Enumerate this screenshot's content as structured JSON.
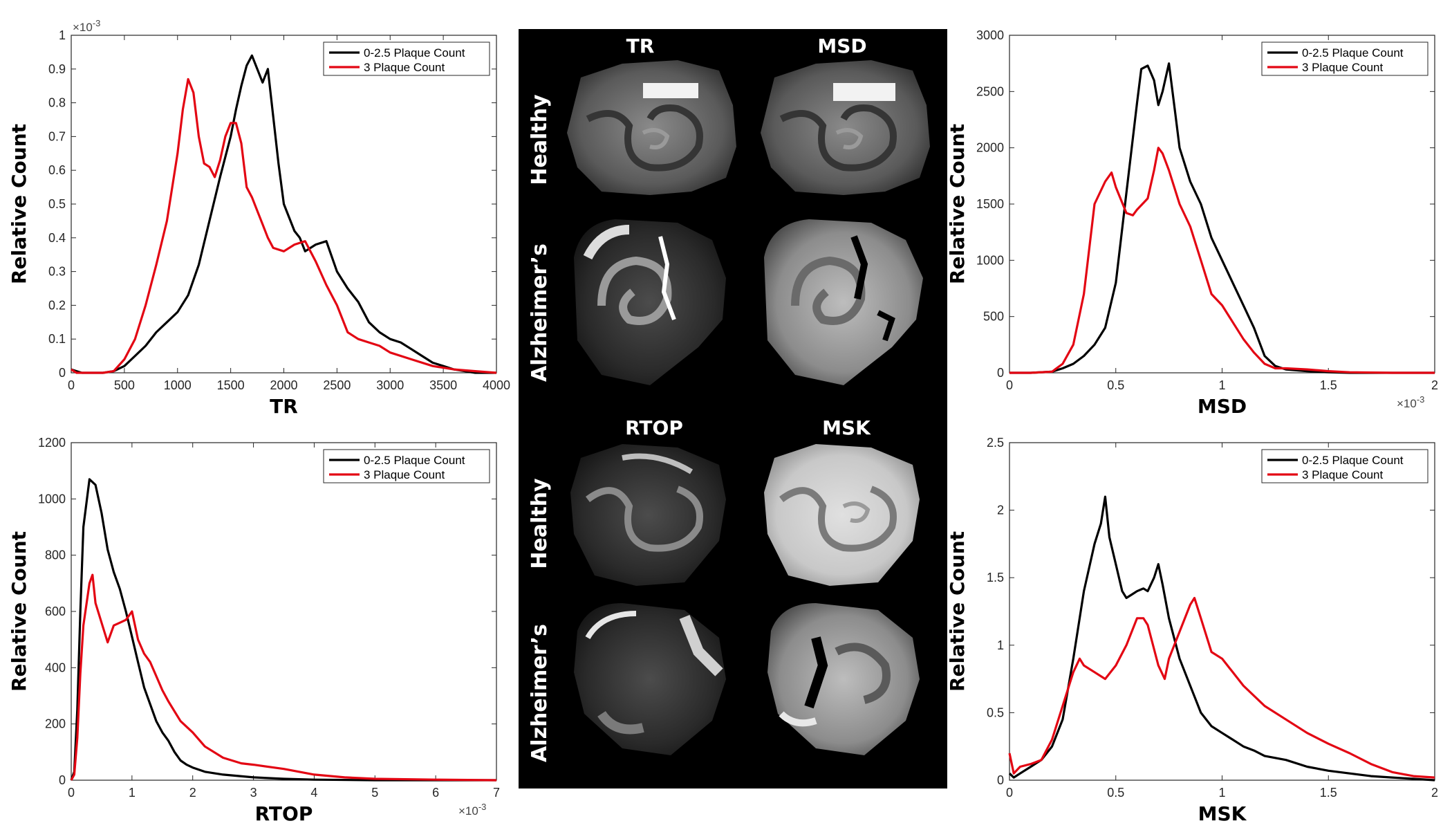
{
  "colors": {
    "black_series": "#000000",
    "red_series": "#e30613",
    "center_bg": "#000000"
  },
  "legend_labels": [
    "0-2.5 Plaque Count",
    "3 Plaque Count"
  ],
  "center_panel": {
    "col_titles_top": [
      "TR",
      "MSD"
    ],
    "col_titles_bottom": [
      "RTOP",
      "MSK"
    ],
    "row_labels": [
      "Healthy",
      "Alzheimer’s",
      "Healthy",
      "Alzheimer’s"
    ]
  },
  "chart_data": [
    {
      "id": "tr",
      "type": "line",
      "xlabel": "TR",
      "ylabel": "Relative Count",
      "xlim": [
        0,
        4000
      ],
      "ylim": [
        0,
        1
      ],
      "xticks": [
        0,
        500,
        1000,
        1500,
        2000,
        2500,
        3000,
        3500,
        4000
      ],
      "xtick_labels": [
        "0",
        "500",
        "1000",
        "1500",
        "2000",
        "2500",
        "3000",
        "3500",
        "4000"
      ],
      "yticks": [
        0,
        0.1,
        0.2,
        0.3,
        0.4,
        0.5,
        0.6,
        0.7,
        0.8,
        0.9,
        1
      ],
      "ytick_labels": [
        "0",
        "0.1",
        "0.2",
        "0.3",
        "0.4",
        "0.5",
        "0.6",
        "0.7",
        "0.8",
        "0.9",
        "1"
      ],
      "y_exponent": "×10-3",
      "x_exponent": "",
      "legend": "top-right",
      "series": [
        {
          "name": "0-2.5 Plaque Count",
          "color": "#000000",
          "x": [
            0,
            50,
            100,
            300,
            400,
            500,
            600,
            700,
            800,
            900,
            1000,
            1100,
            1200,
            1300,
            1400,
            1500,
            1550,
            1600,
            1650,
            1700,
            1750,
            1800,
            1850,
            1900,
            1950,
            2000,
            2050,
            2100,
            2150,
            2200,
            2300,
            2400,
            2500,
            2600,
            2700,
            2800,
            2900,
            3000,
            3100,
            3200,
            3300,
            3400,
            3500,
            3600,
            3700,
            3800,
            3900,
            4000
          ],
          "y": [
            0.01,
            0.005,
            0.0,
            0.0,
            0.005,
            0.02,
            0.05,
            0.08,
            0.12,
            0.15,
            0.18,
            0.23,
            0.32,
            0.45,
            0.58,
            0.7,
            0.78,
            0.85,
            0.91,
            0.94,
            0.9,
            0.86,
            0.9,
            0.76,
            0.62,
            0.5,
            0.46,
            0.42,
            0.4,
            0.36,
            0.38,
            0.39,
            0.3,
            0.25,
            0.21,
            0.15,
            0.12,
            0.1,
            0.09,
            0.07,
            0.05,
            0.03,
            0.02,
            0.01,
            0.005,
            0.0,
            0.0,
            0.0
          ]
        },
        {
          "name": "3 Plaque Count",
          "color": "#e30613",
          "x": [
            0,
            50,
            100,
            300,
            400,
            500,
            600,
            700,
            800,
            900,
            950,
            1000,
            1050,
            1100,
            1150,
            1200,
            1250,
            1300,
            1350,
            1400,
            1450,
            1500,
            1550,
            1600,
            1650,
            1700,
            1750,
            1800,
            1850,
            1900,
            2000,
            2100,
            2200,
            2300,
            2400,
            2500,
            2600,
            2700,
            2800,
            2900,
            3000,
            3200,
            3400,
            3600,
            3800,
            4000
          ],
          "y": [
            0.01,
            0.0,
            0.0,
            0.0,
            0.005,
            0.04,
            0.1,
            0.2,
            0.32,
            0.45,
            0.55,
            0.65,
            0.78,
            0.87,
            0.83,
            0.7,
            0.62,
            0.61,
            0.58,
            0.63,
            0.7,
            0.74,
            0.74,
            0.68,
            0.55,
            0.52,
            0.48,
            0.44,
            0.4,
            0.37,
            0.36,
            0.38,
            0.39,
            0.33,
            0.26,
            0.2,
            0.12,
            0.1,
            0.09,
            0.08,
            0.06,
            0.04,
            0.02,
            0.01,
            0.005,
            0.0
          ]
        }
      ]
    },
    {
      "id": "msd",
      "type": "line",
      "xlabel": "MSD",
      "ylabel": "Relative Count",
      "xlim": [
        0,
        2
      ],
      "ylim": [
        0,
        3000
      ],
      "xticks": [
        0,
        0.5,
        1,
        1.5,
        2
      ],
      "xtick_labels": [
        "0",
        "0.5",
        "1",
        "1.5",
        "2"
      ],
      "yticks": [
        0,
        500,
        1000,
        1500,
        2000,
        2500,
        3000
      ],
      "ytick_labels": [
        "0",
        "500",
        "1000",
        "1500",
        "2000",
        "2500",
        "3000"
      ],
      "y_exponent": "",
      "x_exponent": "×10-3",
      "legend": "top-right",
      "series": [
        {
          "name": "0-2.5 Plaque Count",
          "color": "#000000",
          "x": [
            0,
            0.1,
            0.2,
            0.25,
            0.3,
            0.35,
            0.4,
            0.45,
            0.5,
            0.55,
            0.6,
            0.62,
            0.65,
            0.68,
            0.7,
            0.72,
            0.75,
            0.78,
            0.8,
            0.85,
            0.9,
            0.95,
            1.0,
            1.05,
            1.1,
            1.15,
            1.2,
            1.25,
            1.3,
            1.4,
            1.5,
            1.6,
            1.8,
            2.0
          ],
          "y": [
            0,
            0,
            10,
            40,
            80,
            150,
            250,
            400,
            800,
            1600,
            2400,
            2700,
            2730,
            2600,
            2380,
            2500,
            2750,
            2300,
            2000,
            1700,
            1500,
            1200,
            1000,
            800,
            600,
            400,
            150,
            60,
            30,
            15,
            5,
            0,
            0,
            0
          ]
        },
        {
          "name": "3 Plaque Count",
          "color": "#e30613",
          "x": [
            0,
            0.1,
            0.2,
            0.25,
            0.3,
            0.35,
            0.4,
            0.45,
            0.48,
            0.5,
            0.55,
            0.58,
            0.6,
            0.65,
            0.68,
            0.7,
            0.72,
            0.75,
            0.8,
            0.85,
            0.9,
            0.95,
            1.0,
            1.05,
            1.1,
            1.15,
            1.2,
            1.25,
            1.3,
            1.4,
            1.5,
            1.6,
            1.8,
            2.0
          ],
          "y": [
            0,
            0,
            10,
            80,
            250,
            700,
            1500,
            1700,
            1780,
            1650,
            1420,
            1400,
            1450,
            1550,
            1800,
            2000,
            1950,
            1800,
            1500,
            1300,
            1000,
            700,
            600,
            450,
            300,
            180,
            80,
            40,
            40,
            30,
            15,
            5,
            0,
            0
          ]
        }
      ]
    },
    {
      "id": "rtop",
      "type": "line",
      "xlabel": "RTOP",
      "ylabel": "Relative Count",
      "xlim": [
        0,
        7
      ],
      "ylim": [
        0,
        1200
      ],
      "xticks": [
        0,
        1,
        2,
        3,
        4,
        5,
        6,
        7
      ],
      "xtick_labels": [
        "0",
        "1",
        "2",
        "3",
        "4",
        "5",
        "6",
        "7"
      ],
      "yticks": [
        0,
        200,
        400,
        600,
        800,
        1000,
        1200
      ],
      "ytick_labels": [
        "0",
        "200",
        "400",
        "600",
        "800",
        "1000",
        "1200"
      ],
      "y_exponent": "",
      "x_exponent": "×10-3",
      "legend": "top-right",
      "series": [
        {
          "name": "0-2.5 Plaque Count",
          "color": "#000000",
          "x": [
            0,
            0.05,
            0.1,
            0.15,
            0.2,
            0.3,
            0.4,
            0.5,
            0.6,
            0.7,
            0.8,
            0.9,
            1.0,
            1.1,
            1.2,
            1.3,
            1.4,
            1.5,
            1.6,
            1.7,
            1.8,
            1.9,
            2.0,
            2.2,
            2.5,
            3.0,
            3.5,
            4.0,
            5.0,
            6.0,
            7.0
          ],
          "y": [
            0,
            30,
            250,
            600,
            900,
            1070,
            1050,
            950,
            820,
            740,
            680,
            600,
            510,
            420,
            330,
            270,
            210,
            170,
            140,
            100,
            70,
            55,
            45,
            30,
            20,
            10,
            5,
            2,
            0,
            0,
            0
          ]
        },
        {
          "name": "3 Plaque Count",
          "color": "#e30613",
          "x": [
            0,
            0.05,
            0.1,
            0.15,
            0.2,
            0.3,
            0.35,
            0.4,
            0.5,
            0.6,
            0.7,
            0.8,
            0.9,
            1.0,
            1.1,
            1.2,
            1.3,
            1.4,
            1.5,
            1.6,
            1.8,
            2.0,
            2.2,
            2.5,
            2.8,
            3.0,
            3.5,
            4.0,
            4.5,
            5.0,
            6.0,
            7.0
          ],
          "y": [
            0,
            20,
            150,
            380,
            550,
            700,
            730,
            630,
            560,
            490,
            550,
            560,
            570,
            600,
            500,
            450,
            420,
            370,
            320,
            280,
            210,
            170,
            120,
            80,
            60,
            55,
            40,
            20,
            10,
            5,
            2,
            0
          ]
        }
      ]
    },
    {
      "id": "msk",
      "type": "line",
      "xlabel": "MSK",
      "ylabel": "Relative Count",
      "xlim": [
        0,
        2
      ],
      "ylim": [
        0,
        2.5
      ],
      "xticks": [
        0,
        0.5,
        1,
        1.5,
        2
      ],
      "xtick_labels": [
        "0",
        "0.5",
        "1",
        "1.5",
        "2"
      ],
      "yticks": [
        0,
        0.5,
        1,
        1.5,
        2,
        2.5
      ],
      "ytick_labels": [
        "0",
        "0.5",
        "1",
        "1.5",
        "2",
        "2.5"
      ],
      "y_exponent": "",
      "x_exponent": "",
      "legend": "top-right",
      "series": [
        {
          "name": "0-2.5 Plaque Count",
          "color": "#000000",
          "x": [
            0,
            0.02,
            0.05,
            0.1,
            0.15,
            0.2,
            0.25,
            0.3,
            0.35,
            0.4,
            0.43,
            0.45,
            0.47,
            0.5,
            0.53,
            0.55,
            0.58,
            0.6,
            0.63,
            0.65,
            0.68,
            0.7,
            0.72,
            0.75,
            0.8,
            0.85,
            0.9,
            0.95,
            1.0,
            1.05,
            1.1,
            1.15,
            1.2,
            1.3,
            1.4,
            1.5,
            1.6,
            1.7,
            1.8,
            1.9,
            2.0
          ],
          "y": [
            0.05,
            0.02,
            0.05,
            0.1,
            0.15,
            0.25,
            0.45,
            0.9,
            1.4,
            1.75,
            1.9,
            2.1,
            1.8,
            1.6,
            1.4,
            1.35,
            1.38,
            1.4,
            1.42,
            1.4,
            1.5,
            1.6,
            1.45,
            1.2,
            0.9,
            0.7,
            0.5,
            0.4,
            0.35,
            0.3,
            0.25,
            0.22,
            0.18,
            0.15,
            0.1,
            0.07,
            0.05,
            0.03,
            0.02,
            0.01,
            0.0
          ]
        },
        {
          "name": "3 Plaque Count",
          "color": "#e30613",
          "x": [
            0,
            0.02,
            0.05,
            0.1,
            0.15,
            0.2,
            0.25,
            0.3,
            0.33,
            0.35,
            0.4,
            0.45,
            0.5,
            0.55,
            0.6,
            0.63,
            0.65,
            0.7,
            0.73,
            0.75,
            0.8,
            0.85,
            0.87,
            0.9,
            0.95,
            1.0,
            1.05,
            1.1,
            1.2,
            1.3,
            1.4,
            1.5,
            1.6,
            1.7,
            1.8,
            1.9,
            2.0
          ],
          "y": [
            0.2,
            0.05,
            0.1,
            0.12,
            0.15,
            0.3,
            0.55,
            0.8,
            0.9,
            0.85,
            0.8,
            0.75,
            0.85,
            1.0,
            1.2,
            1.2,
            1.15,
            0.85,
            0.75,
            0.9,
            1.1,
            1.3,
            1.35,
            1.2,
            0.95,
            0.9,
            0.8,
            0.7,
            0.55,
            0.45,
            0.35,
            0.27,
            0.2,
            0.12,
            0.06,
            0.03,
            0.02
          ]
        }
      ]
    }
  ]
}
